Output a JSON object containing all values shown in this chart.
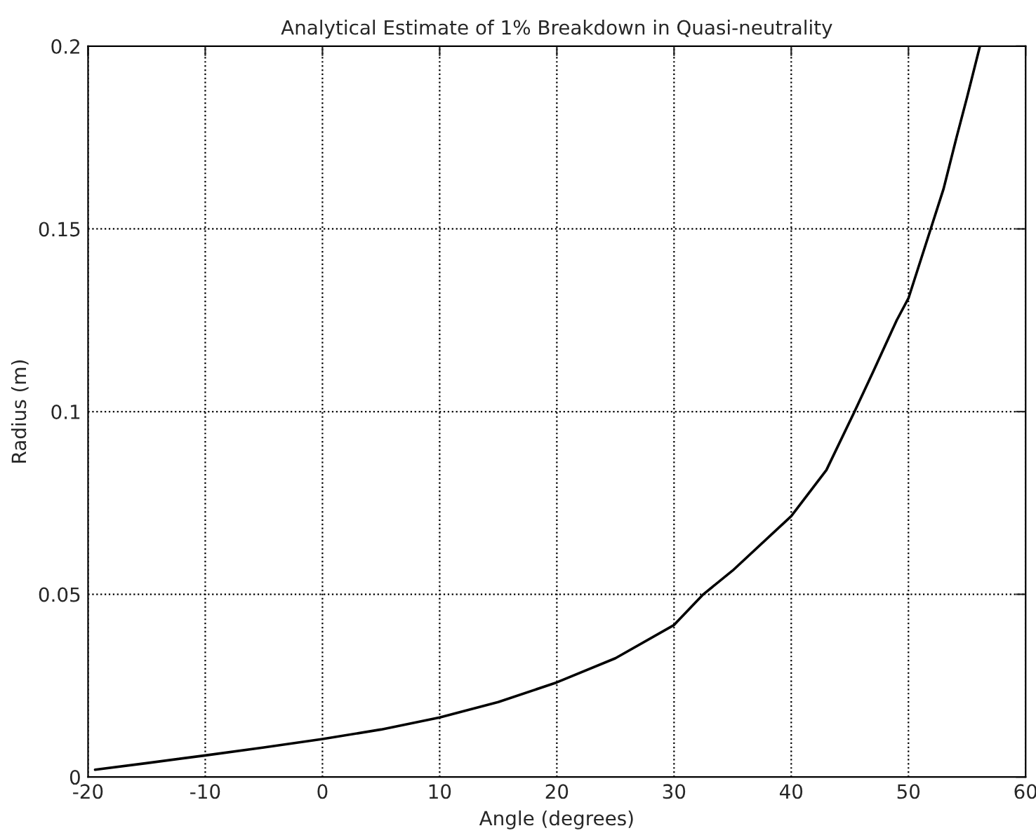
{
  "chart_data": {
    "type": "line",
    "title": "Analytical Estimate of 1% Breakdown in Quasi-neutrality",
    "xlabel": "Angle (degrees)",
    "ylabel": "Radius (m)",
    "x": [
      -19.4,
      -15,
      -10,
      -5,
      0,
      5,
      10,
      15,
      20,
      25,
      30,
      32.5,
      35,
      40,
      43,
      45.4,
      47,
      49,
      50,
      51.9,
      53,
      54.1,
      55,
      56.1
    ],
    "series": [
      {
        "color": "#000000",
        "values": [
          0.002,
          0.0038,
          0.0059,
          0.0081,
          0.0104,
          0.013,
          0.0163,
          0.0205,
          0.0259,
          0.0325,
          0.0416,
          0.05,
          0.0565,
          0.0714,
          0.084,
          0.1,
          0.111,
          0.125,
          0.131,
          0.15,
          0.161,
          0.175,
          0.186,
          0.2
        ]
      }
    ],
    "xlim": [
      -20,
      60
    ],
    "ylim": [
      0,
      0.2
    ],
    "xticks": [
      -20,
      -10,
      0,
      10,
      20,
      30,
      40,
      50,
      60
    ],
    "yticks": [
      0,
      0.05,
      0.1,
      0.15,
      0.2
    ],
    "grid": true,
    "line_style": "solid",
    "marker": "none"
  }
}
